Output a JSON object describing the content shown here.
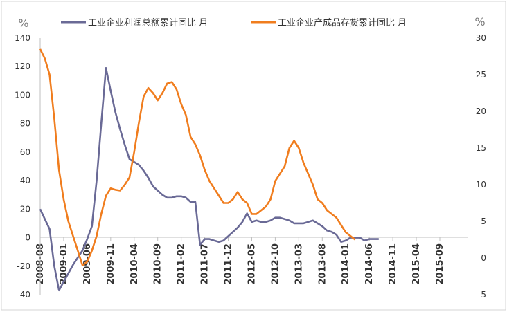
{
  "chart_data": {
    "type": "line",
    "left_unit": "%",
    "right_unit": "%",
    "x_ticks": [
      "2008-08",
      "2009-01",
      "2009-06",
      "2009-11",
      "2010-04",
      "2010-09",
      "2011-02",
      "2011-07",
      "2011-12",
      "2012-05",
      "2012-10",
      "2013-03",
      "2013-08",
      "2014-01",
      "2014-06",
      "2014-11",
      "2015-04",
      "2015-09"
    ],
    "y_left": {
      "min": -40,
      "max": 140,
      "step": 20
    },
    "y_right": {
      "min": -5,
      "max": 30,
      "step": 5
    },
    "legend_position": "top",
    "series": [
      {
        "name": "工业企业利润总额累计同比 月",
        "axis": "left",
        "color": "#6a6a96",
        "start": "2008-08",
        "values": [
          20,
          13,
          6,
          -20,
          -37,
          -31,
          -25,
          -19,
          -14,
          -9,
          -1,
          8,
          40,
          80,
          119,
          103,
          88,
          76,
          65,
          55,
          53,
          51,
          47,
          42,
          36,
          33,
          30,
          28,
          28,
          29,
          29,
          28,
          25,
          25,
          -5,
          -1,
          -1,
          -2,
          -3,
          -2,
          1,
          4,
          7,
          11,
          17,
          11,
          12,
          11,
          11,
          12,
          14,
          14,
          13,
          12,
          10,
          10,
          10,
          11,
          12,
          10,
          8,
          5,
          4,
          2,
          -3,
          -2,
          0,
          0,
          0,
          -2,
          -1,
          -1,
          -1
        ]
      },
      {
        "name": "工业企业产成品存货累计同比 月",
        "axis": "right",
        "color": "#f07d1e",
        "start": "2008-08",
        "values": [
          28.5,
          27.2,
          25.0,
          19.0,
          12.0,
          8.0,
          5.0,
          3.0,
          1.0,
          -1.0,
          -0.5,
          1.0,
          3.0,
          6.0,
          8.5,
          9.5,
          9.3,
          9.2,
          10.0,
          11.0,
          14.5,
          18.5,
          22.0,
          23.2,
          22.5,
          21.5,
          22.5,
          23.8,
          24.0,
          23.0,
          21.0,
          19.5,
          16.5,
          15.5,
          14.0,
          12.0,
          10.5,
          9.5,
          8.5,
          7.5,
          7.5,
          8.0,
          9.0,
          8.0,
          7.5,
          6.0,
          6.0,
          6.5,
          7.0,
          8.0,
          10.5,
          11.5,
          12.5,
          15.0,
          16.0,
          15.0,
          13.0,
          11.5,
          10.0,
          8.0,
          7.5,
          6.5,
          6.0,
          5.5,
          4.5,
          3.5,
          3.0,
          2.5
        ]
      }
    ]
  }
}
